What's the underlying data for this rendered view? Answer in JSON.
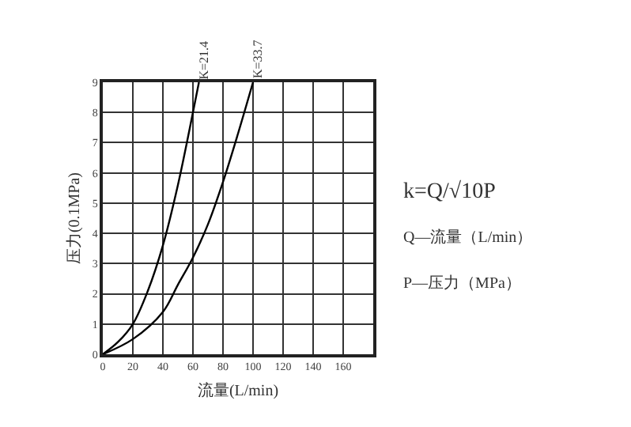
{
  "chart_data": {
    "type": "line",
    "xlabel": "流量(L/min)",
    "ylabel": "压力(0.1MPa)",
    "xlim": [
      0,
      180
    ],
    "xticks": [
      0,
      20,
      40,
      60,
      80,
      100,
      120,
      140,
      160,
      {
        "value": 180,
        "label": null
      }
    ],
    "ylim": [
      0,
      9
    ],
    "yticks": [
      0,
      1,
      2,
      3,
      4,
      5,
      6,
      7,
      8,
      9
    ],
    "grid": true,
    "marker": "none",
    "line_style": "solid",
    "series": [
      {
        "color": "#000000",
        "x": [
          0,
          10,
          20,
          30,
          40,
          50,
          60,
          64
        ],
        "values": [
          0,
          0.4,
          1.0,
          2.1,
          3.6,
          5.6,
          8.0,
          9
        ]
      },
      {
        "color": "#000000",
        "x": [
          0,
          20,
          40,
          50,
          60,
          70,
          80,
          90,
          100
        ],
        "values": [
          0,
          0.5,
          1.4,
          2.3,
          3.2,
          4.3,
          5.7,
          7.3,
          9
        ]
      }
    ],
    "annotations": [
      {
        "text": "K=21.4",
        "x": 64,
        "y": 9
      },
      {
        "text": "K=33.7",
        "x": 100,
        "y": 9
      },
      "k=Q/√10P",
      "Q—流量（L/min）",
      "P—压力（MPa）"
    ]
  }
}
